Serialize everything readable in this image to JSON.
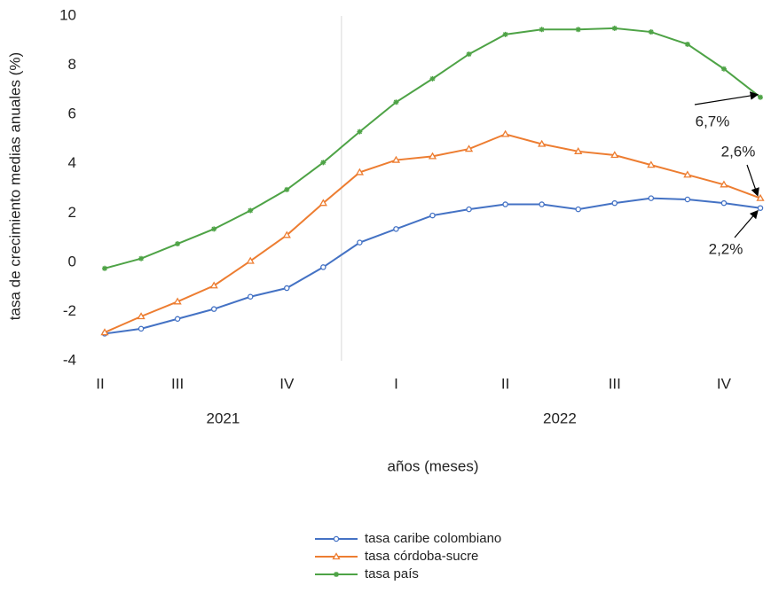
{
  "chart_data": {
    "type": "line",
    "y_label": "tasa de crecimiento  medias anuales (%)",
    "x_label": "años (meses)",
    "categories": [
      "II",
      null,
      "III",
      null,
      null,
      "IV",
      null,
      null,
      "I",
      null,
      null,
      "II",
      null,
      null,
      "III",
      null,
      null,
      "IV",
      null
    ],
    "groups": [
      "2021",
      "2022"
    ],
    "ylim": [
      -4,
      10
    ],
    "yticks": [
      -4,
      -2,
      0,
      2,
      4,
      6,
      8,
      10
    ],
    "series": [
      {
        "name": "tasa caribe colombiano",
        "color": "#4472c4",
        "marker": "circle",
        "values": [
          -2.9,
          -2.7,
          -2.3,
          -1.9,
          -1.4,
          -1.05,
          -0.2,
          0.8,
          1.35,
          1.9,
          2.15,
          2.35,
          2.35,
          2.15,
          2.4,
          2.6,
          2.55,
          2.4,
          2.2
        ]
      },
      {
        "name": "tasa córdoba-sucre",
        "color": "#ed7d31",
        "marker": "triangle",
        "values": [
          -2.85,
          -2.2,
          -1.6,
          -0.95,
          0.05,
          1.1,
          2.4,
          3.65,
          4.15,
          4.3,
          4.6,
          5.2,
          4.8,
          4.5,
          4.35,
          3.95,
          3.55,
          3.15,
          2.6
        ]
      },
      {
        "name": "tasa país",
        "color": "#4ea346",
        "marker": "star",
        "values": [
          -0.25,
          0.15,
          0.75,
          1.35,
          2.1,
          2.95,
          4.05,
          5.3,
          6.5,
          7.45,
          8.45,
          9.25,
          9.45,
          9.45,
          9.5,
          9.35,
          8.85,
          7.85,
          6.7
        ]
      }
    ],
    "annotations": [
      {
        "text": "6,7%",
        "series": 2
      },
      {
        "text": "2,6%",
        "series": 1
      },
      {
        "text": "2,2%",
        "series": 0
      }
    ]
  }
}
